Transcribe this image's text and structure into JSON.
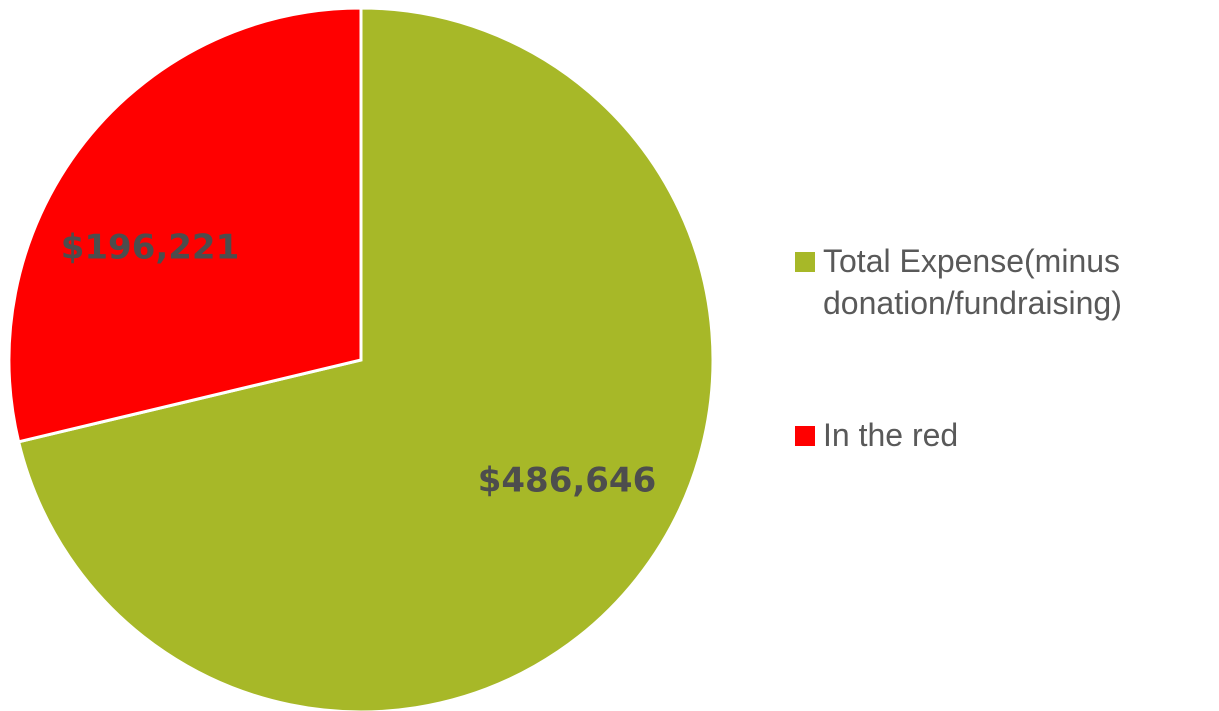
{
  "chart_data": {
    "type": "pie",
    "categories": [
      "Total Expense(minus donation/fundraising)",
      "In the red"
    ],
    "values": [
      486646,
      196221
    ],
    "data_labels": [
      "$486,646",
      "$196,221"
    ],
    "colors": [
      "#a7b828",
      "#ff0000"
    ],
    "legend_position": "right",
    "title": ""
  }
}
